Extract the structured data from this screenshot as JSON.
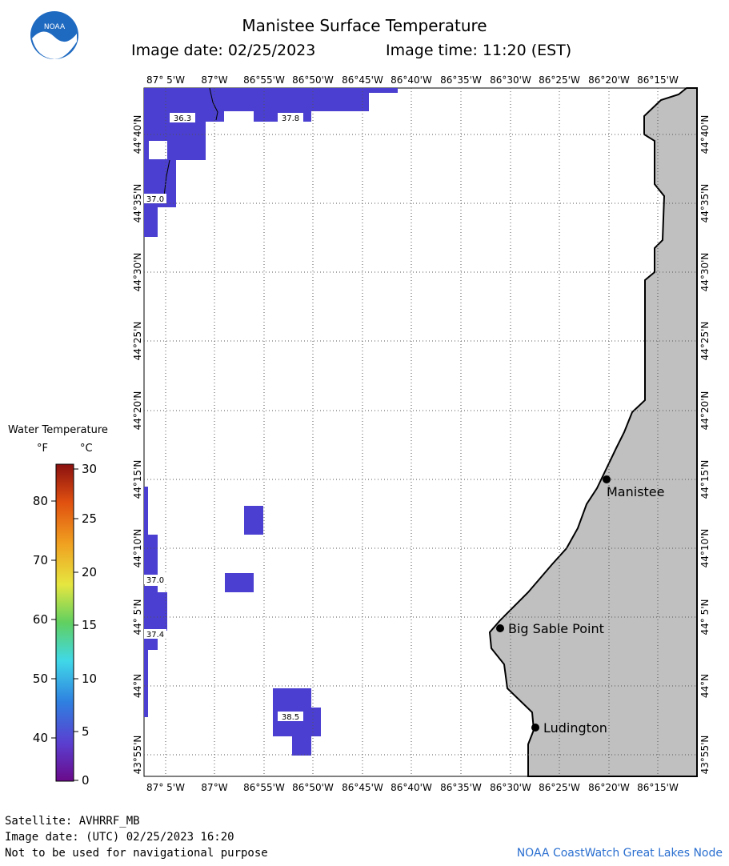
{
  "header": {
    "title": "Manistee Surface Temperature",
    "image_date": "Image date: 02/25/2023",
    "image_time": "Image time: 11:20 (EST)"
  },
  "logo": {
    "text": "NOAA",
    "icon": "noaa-logo-icon"
  },
  "map": {
    "lon_labels_top": [
      "87° 5'W",
      "87°W",
      "86°55'W",
      "86°50'W",
      "86°45'W",
      "86°40'W",
      "86°35'W",
      "86°30'W",
      "86°25'W",
      "86°20'W",
      "86°15'W"
    ],
    "lon_labels_bottom": [
      "87° 5'W",
      "87°W",
      "86°55'W",
      "86°50'W",
      "86°45'W",
      "86°40'W",
      "86°35'W",
      "86°30'W",
      "86°25'W",
      "86°20'W",
      "86°15'W"
    ],
    "lat_labels": [
      "44°40'N",
      "44°35'N",
      "44°30'N",
      "44°25'N",
      "44°20'N",
      "44°15'N",
      "44°10'N",
      "44° 5'N",
      "44°N",
      "43°55'N"
    ],
    "places": [
      {
        "name": "Manistee"
      },
      {
        "name": "Big Sable Point"
      },
      {
        "name": "Ludington"
      }
    ],
    "temp_labels": [
      "36.3",
      "37.8",
      "37.0",
      "37.0",
      "37.4",
      "38.5"
    ],
    "colors": {
      "water_temp": "#4a3fd0",
      "land": "#c0c0c0",
      "grid": "#555555"
    }
  },
  "legend": {
    "title": "Water Temperature",
    "unit_f": "°F",
    "unit_c": "°C",
    "f_ticks": [
      "80",
      "70",
      "60",
      "50",
      "40"
    ],
    "c_ticks": [
      "30",
      "25",
      "20",
      "15",
      "10",
      "5",
      "0"
    ]
  },
  "footer": {
    "satellite": "Satellite: AVHRRF_MB",
    "utc_date": "Image date: (UTC) 02/25/2023  16:20",
    "disclaimer": "Not to be used for navigational purpose",
    "credit": "NOAA CoastWatch Great Lakes Node"
  }
}
